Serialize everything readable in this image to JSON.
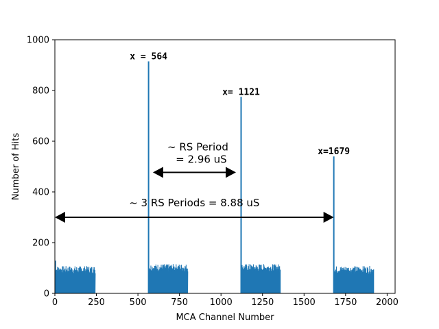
{
  "chart_data": {
    "type": "histogram",
    "xlabel": "MCA Channel Number",
    "ylabel": "Number of Hits",
    "xlim": [
      0,
      2048
    ],
    "ylim": [
      0,
      1000
    ],
    "xticks": [
      0,
      250,
      500,
      750,
      1000,
      1250,
      1500,
      1750,
      2000
    ],
    "yticks": [
      0,
      200,
      400,
      600,
      800,
      1000
    ],
    "grid": false,
    "color": "#1f77b4",
    "bands": [
      {
        "start": 0,
        "end": 243,
        "level": 95
      },
      {
        "start": 565,
        "end": 800,
        "level": 103
      },
      {
        "start": 1122,
        "end": 1358,
        "level": 103
      },
      {
        "start": 1680,
        "end": 1920,
        "level": 95
      }
    ],
    "peaks": [
      {
        "x": 564,
        "y": 915,
        "label": "x = 564"
      },
      {
        "x": 1121,
        "y": 775,
        "label": "x= 1121"
      },
      {
        "x": 1679,
        "y": 540,
        "label": "x=1679"
      }
    ],
    "annotations": [
      {
        "text_line1": "~ RS Period",
        "text_line2": "= 2.96 uS",
        "x_from": 590,
        "x_to": 1090,
        "y": 477
      },
      {
        "text_line1": "~ 3 RS Periods = 8.88 uS",
        "x_from": 0,
        "x_to": 1679,
        "y": 300
      }
    ]
  }
}
